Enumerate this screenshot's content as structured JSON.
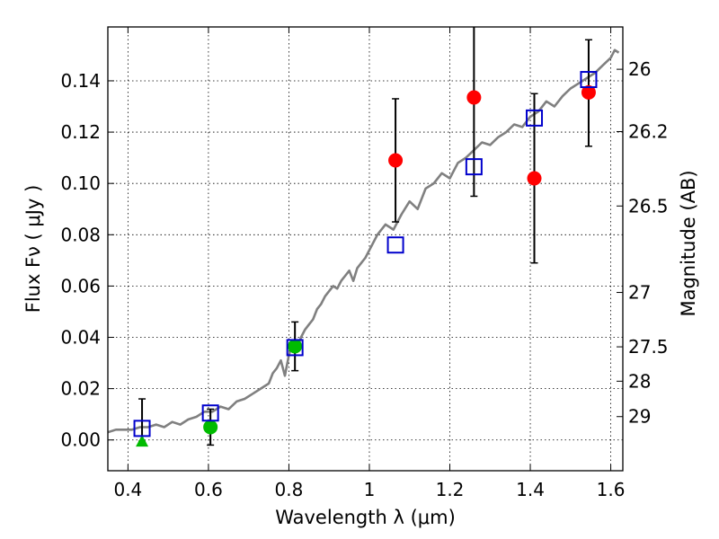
{
  "chart_data": {
    "type": "scatter",
    "xlabel": "Wavelength  λ (μm)",
    "ylabel": "Flux  Fν  ( μJy )",
    "y2label": "Magnitude (AB)",
    "xlim": [
      0.35,
      1.63
    ],
    "ylim": [
      -0.012,
      0.161
    ],
    "x_ticks": [
      0.4,
      0.6,
      0.8,
      1.0,
      1.2,
      1.4,
      1.6
    ],
    "x_tick_labels": [
      "0.4",
      "0.6",
      "0.8",
      "1",
      "1.2",
      "1.4",
      "1.6"
    ],
    "y_ticks": [
      0.0,
      0.02,
      0.04,
      0.06,
      0.08,
      0.1,
      0.12,
      0.14
    ],
    "y_tick_labels": [
      "0.00",
      "0.02",
      "0.04",
      "0.06",
      "0.08",
      "0.10",
      "0.12",
      "0.14"
    ],
    "y2_ticks": [
      {
        "label": "26",
        "flux": 0.1445
      },
      {
        "label": "26.2",
        "flux": 0.1202
      },
      {
        "label": "26.5",
        "flux": 0.0912
      },
      {
        "label": "27",
        "flux": 0.0575
      },
      {
        "label": "27.5",
        "flux": 0.0363
      },
      {
        "label": "28",
        "flux": 0.0229
      },
      {
        "label": "29",
        "flux": 0.0091
      }
    ],
    "grid": true,
    "colors": {
      "model": "#808080",
      "observed_upper": "#ff0000",
      "observed_lower": "#00bb00",
      "synthetic": "#0000cc",
      "errorbar": "#000000"
    },
    "model_spectrum": {
      "x": [
        0.35,
        0.37,
        0.39,
        0.41,
        0.43,
        0.45,
        0.47,
        0.49,
        0.51,
        0.53,
        0.55,
        0.57,
        0.59,
        0.61,
        0.63,
        0.65,
        0.67,
        0.69,
        0.71,
        0.73,
        0.75,
        0.76,
        0.77,
        0.78,
        0.79,
        0.8,
        0.81,
        0.82,
        0.83,
        0.84,
        0.85,
        0.86,
        0.87,
        0.88,
        0.89,
        0.9,
        0.91,
        0.92,
        0.93,
        0.94,
        0.95,
        0.96,
        0.97,
        0.98,
        0.99,
        1.0,
        1.02,
        1.04,
        1.06,
        1.08,
        1.1,
        1.12,
        1.14,
        1.16,
        1.18,
        1.2,
        1.22,
        1.24,
        1.26,
        1.28,
        1.3,
        1.32,
        1.34,
        1.36,
        1.38,
        1.4,
        1.42,
        1.44,
        1.46,
        1.48,
        1.5,
        1.52,
        1.54,
        1.56,
        1.58,
        1.6,
        1.61,
        1.62
      ],
      "y": [
        0.003,
        0.004,
        0.004,
        0.004,
        0.005,
        0.005,
        0.006,
        0.005,
        0.007,
        0.006,
        0.008,
        0.009,
        0.011,
        0.011,
        0.013,
        0.012,
        0.015,
        0.016,
        0.018,
        0.02,
        0.022,
        0.026,
        0.028,
        0.031,
        0.025,
        0.033,
        0.038,
        0.035,
        0.04,
        0.043,
        0.045,
        0.047,
        0.051,
        0.053,
        0.056,
        0.058,
        0.06,
        0.059,
        0.062,
        0.064,
        0.066,
        0.062,
        0.067,
        0.069,
        0.071,
        0.074,
        0.08,
        0.084,
        0.082,
        0.088,
        0.093,
        0.09,
        0.098,
        0.1,
        0.104,
        0.102,
        0.108,
        0.11,
        0.113,
        0.116,
        0.115,
        0.118,
        0.12,
        0.123,
        0.122,
        0.126,
        0.128,
        0.132,
        0.13,
        0.134,
        0.137,
        0.139,
        0.141,
        0.143,
        0.146,
        0.149,
        0.152,
        0.151
      ]
    },
    "series": [
      {
        "marker": "circle",
        "color": "#ff0000",
        "x": [
          1.065,
          1.26,
          1.41,
          1.545
        ],
        "y": [
          0.109,
          0.1335,
          0.102,
          0.1355
        ],
        "yerr_low": [
          0.085,
          0.095,
          0.069,
          0.1145
        ],
        "yerr_high": [
          0.133,
          0.165,
          0.135,
          0.156
        ]
      },
      {
        "marker": "circle",
        "color": "#00bb00",
        "x": [
          0.605,
          0.815
        ],
        "y": [
          0.005,
          0.0365
        ],
        "yerr_low": [
          -0.002,
          0.027
        ],
        "yerr_high": [
          0.012,
          0.046
        ]
      },
      {
        "marker": "triangle",
        "color": "#00bb00",
        "x": [
          0.435
        ],
        "y": [
          -0.0005
        ],
        "yerr_low": [
          -0.0005
        ],
        "yerr_high": [
          0.016
        ]
      },
      {
        "marker": "square-open",
        "color": "#0000cc",
        "x": [
          0.435,
          0.605,
          0.815,
          1.065,
          1.26,
          1.41,
          1.545
        ],
        "y": [
          0.0045,
          0.0105,
          0.036,
          0.076,
          0.1065,
          0.1255,
          0.1405
        ]
      }
    ]
  }
}
